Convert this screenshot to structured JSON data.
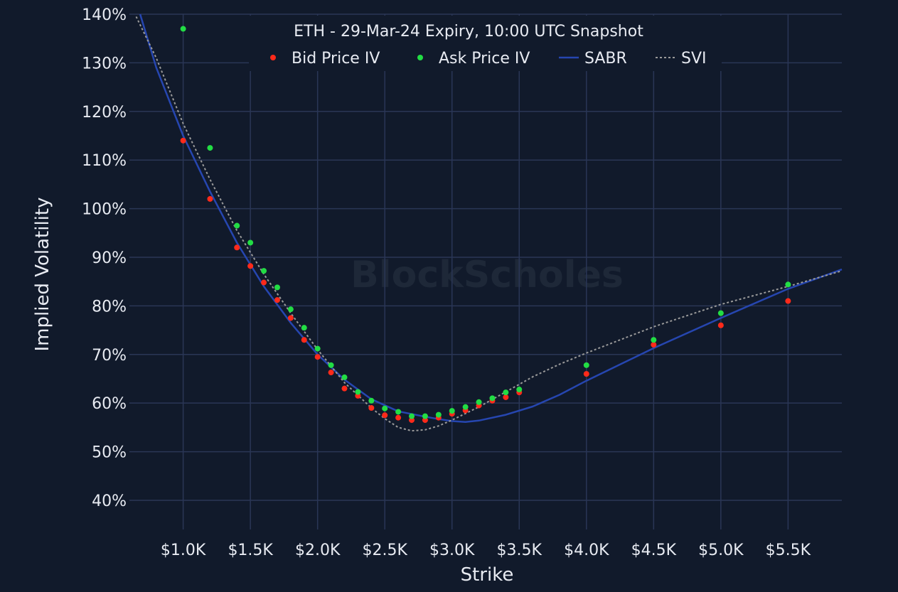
{
  "chart_data": {
    "type": "scatter",
    "title": "ETH - 29-Mar-24 Expiry, 10:00 UTC Snapshot",
    "xlabel": "Strike",
    "ylabel": "Implied Volatility",
    "xlim": [
      600,
      5900
    ],
    "ylim": [
      34,
      140
    ],
    "x_ticks": [
      1000,
      1500,
      2000,
      2500,
      3000,
      3500,
      4000,
      4500,
      5000,
      5500
    ],
    "x_tick_labels": [
      "$1.0K",
      "$1.5K",
      "$2.0K",
      "$2.5K",
      "$3.0K",
      "$3.5K",
      "$4.0K",
      "$4.5K",
      "$5.0K",
      "$5.5K"
    ],
    "y_ticks": [
      40,
      50,
      60,
      70,
      80,
      90,
      100,
      110,
      120,
      130,
      140
    ],
    "y_tick_labels": [
      "40%",
      "50%",
      "60%",
      "70%",
      "80%",
      "90%",
      "100%",
      "110%",
      "120%",
      "130%",
      "140%"
    ],
    "grid": true,
    "legend_position": "top-center",
    "watermark": "BlockScholes",
    "series": [
      {
        "name": "Bid Price IV",
        "mode": "markers",
        "color": "#ff2a1a",
        "x": [
          1000,
          1200,
          1400,
          1500,
          1600,
          1700,
          1800,
          1900,
          2000,
          2100,
          2200,
          2300,
          2400,
          2500,
          2600,
          2700,
          2800,
          2900,
          3000,
          3100,
          3200,
          3300,
          3400,
          3500,
          4000,
          4500,
          5000,
          5500
        ],
        "y": [
          114.0,
          102.0,
          92.0,
          88.2,
          84.8,
          81.2,
          77.5,
          73.0,
          69.5,
          66.3,
          63.0,
          61.5,
          59.0,
          57.5,
          57.0,
          56.5,
          56.5,
          57.0,
          57.8,
          58.5,
          59.5,
          60.5,
          61.2,
          62.2,
          66.0,
          72.0,
          76.0,
          81.0
        ]
      },
      {
        "name": "Ask Price IV",
        "mode": "markers",
        "color": "#22dd44",
        "x": [
          1000,
          1200,
          1400,
          1500,
          1600,
          1700,
          1800,
          1900,
          2000,
          2100,
          2200,
          2300,
          2400,
          2500,
          2600,
          2700,
          2800,
          2900,
          3000,
          3100,
          3200,
          3300,
          3400,
          3500,
          4000,
          4500,
          5000,
          5500
        ],
        "y": [
          137.0,
          112.5,
          96.5,
          93.0,
          87.2,
          83.8,
          79.3,
          75.5,
          71.2,
          67.8,
          65.3,
          62.3,
          60.5,
          58.9,
          58.2,
          57.3,
          57.3,
          57.6,
          58.4,
          59.2,
          60.2,
          61.0,
          62.2,
          62.8,
          67.8,
          73.0,
          78.5,
          84.4
        ]
      },
      {
        "name": "SABR",
        "mode": "line",
        "color": "#2646b0",
        "x": [
          680,
          800,
          1000,
          1200,
          1400,
          1600,
          1800,
          2000,
          2200,
          2400,
          2600,
          2800,
          2900,
          3000,
          3100,
          3200,
          3400,
          3600,
          3800,
          4000,
          4500,
          5000,
          5500,
          5900
        ],
        "y": [
          140.0,
          129.0,
          115.0,
          103.5,
          93.0,
          84.0,
          76.5,
          70.0,
          64.8,
          60.8,
          58.3,
          57.2,
          56.7,
          56.3,
          56.1,
          56.4,
          57.6,
          59.3,
          61.7,
          64.6,
          71.3,
          77.5,
          83.5,
          87.5
        ]
      },
      {
        "name": "SVI",
        "mode": "dotted-line",
        "color": "#9a9a9a",
        "x": [
          650,
          800,
          1000,
          1200,
          1400,
          1600,
          1800,
          2000,
          2200,
          2400,
          2500,
          2600,
          2700,
          2800,
          2900,
          3000,
          3200,
          3400,
          3600,
          3800,
          4000,
          4500,
          5000,
          5500,
          5900
        ],
        "y": [
          139.5,
          131.0,
          117.5,
          106.0,
          95.5,
          86.5,
          78.5,
          71.0,
          64.2,
          59.0,
          56.8,
          55.0,
          54.3,
          54.5,
          55.3,
          56.5,
          59.2,
          62.3,
          65.4,
          68.0,
          70.3,
          75.7,
          80.3,
          84.0,
          87.2
        ]
      }
    ]
  }
}
